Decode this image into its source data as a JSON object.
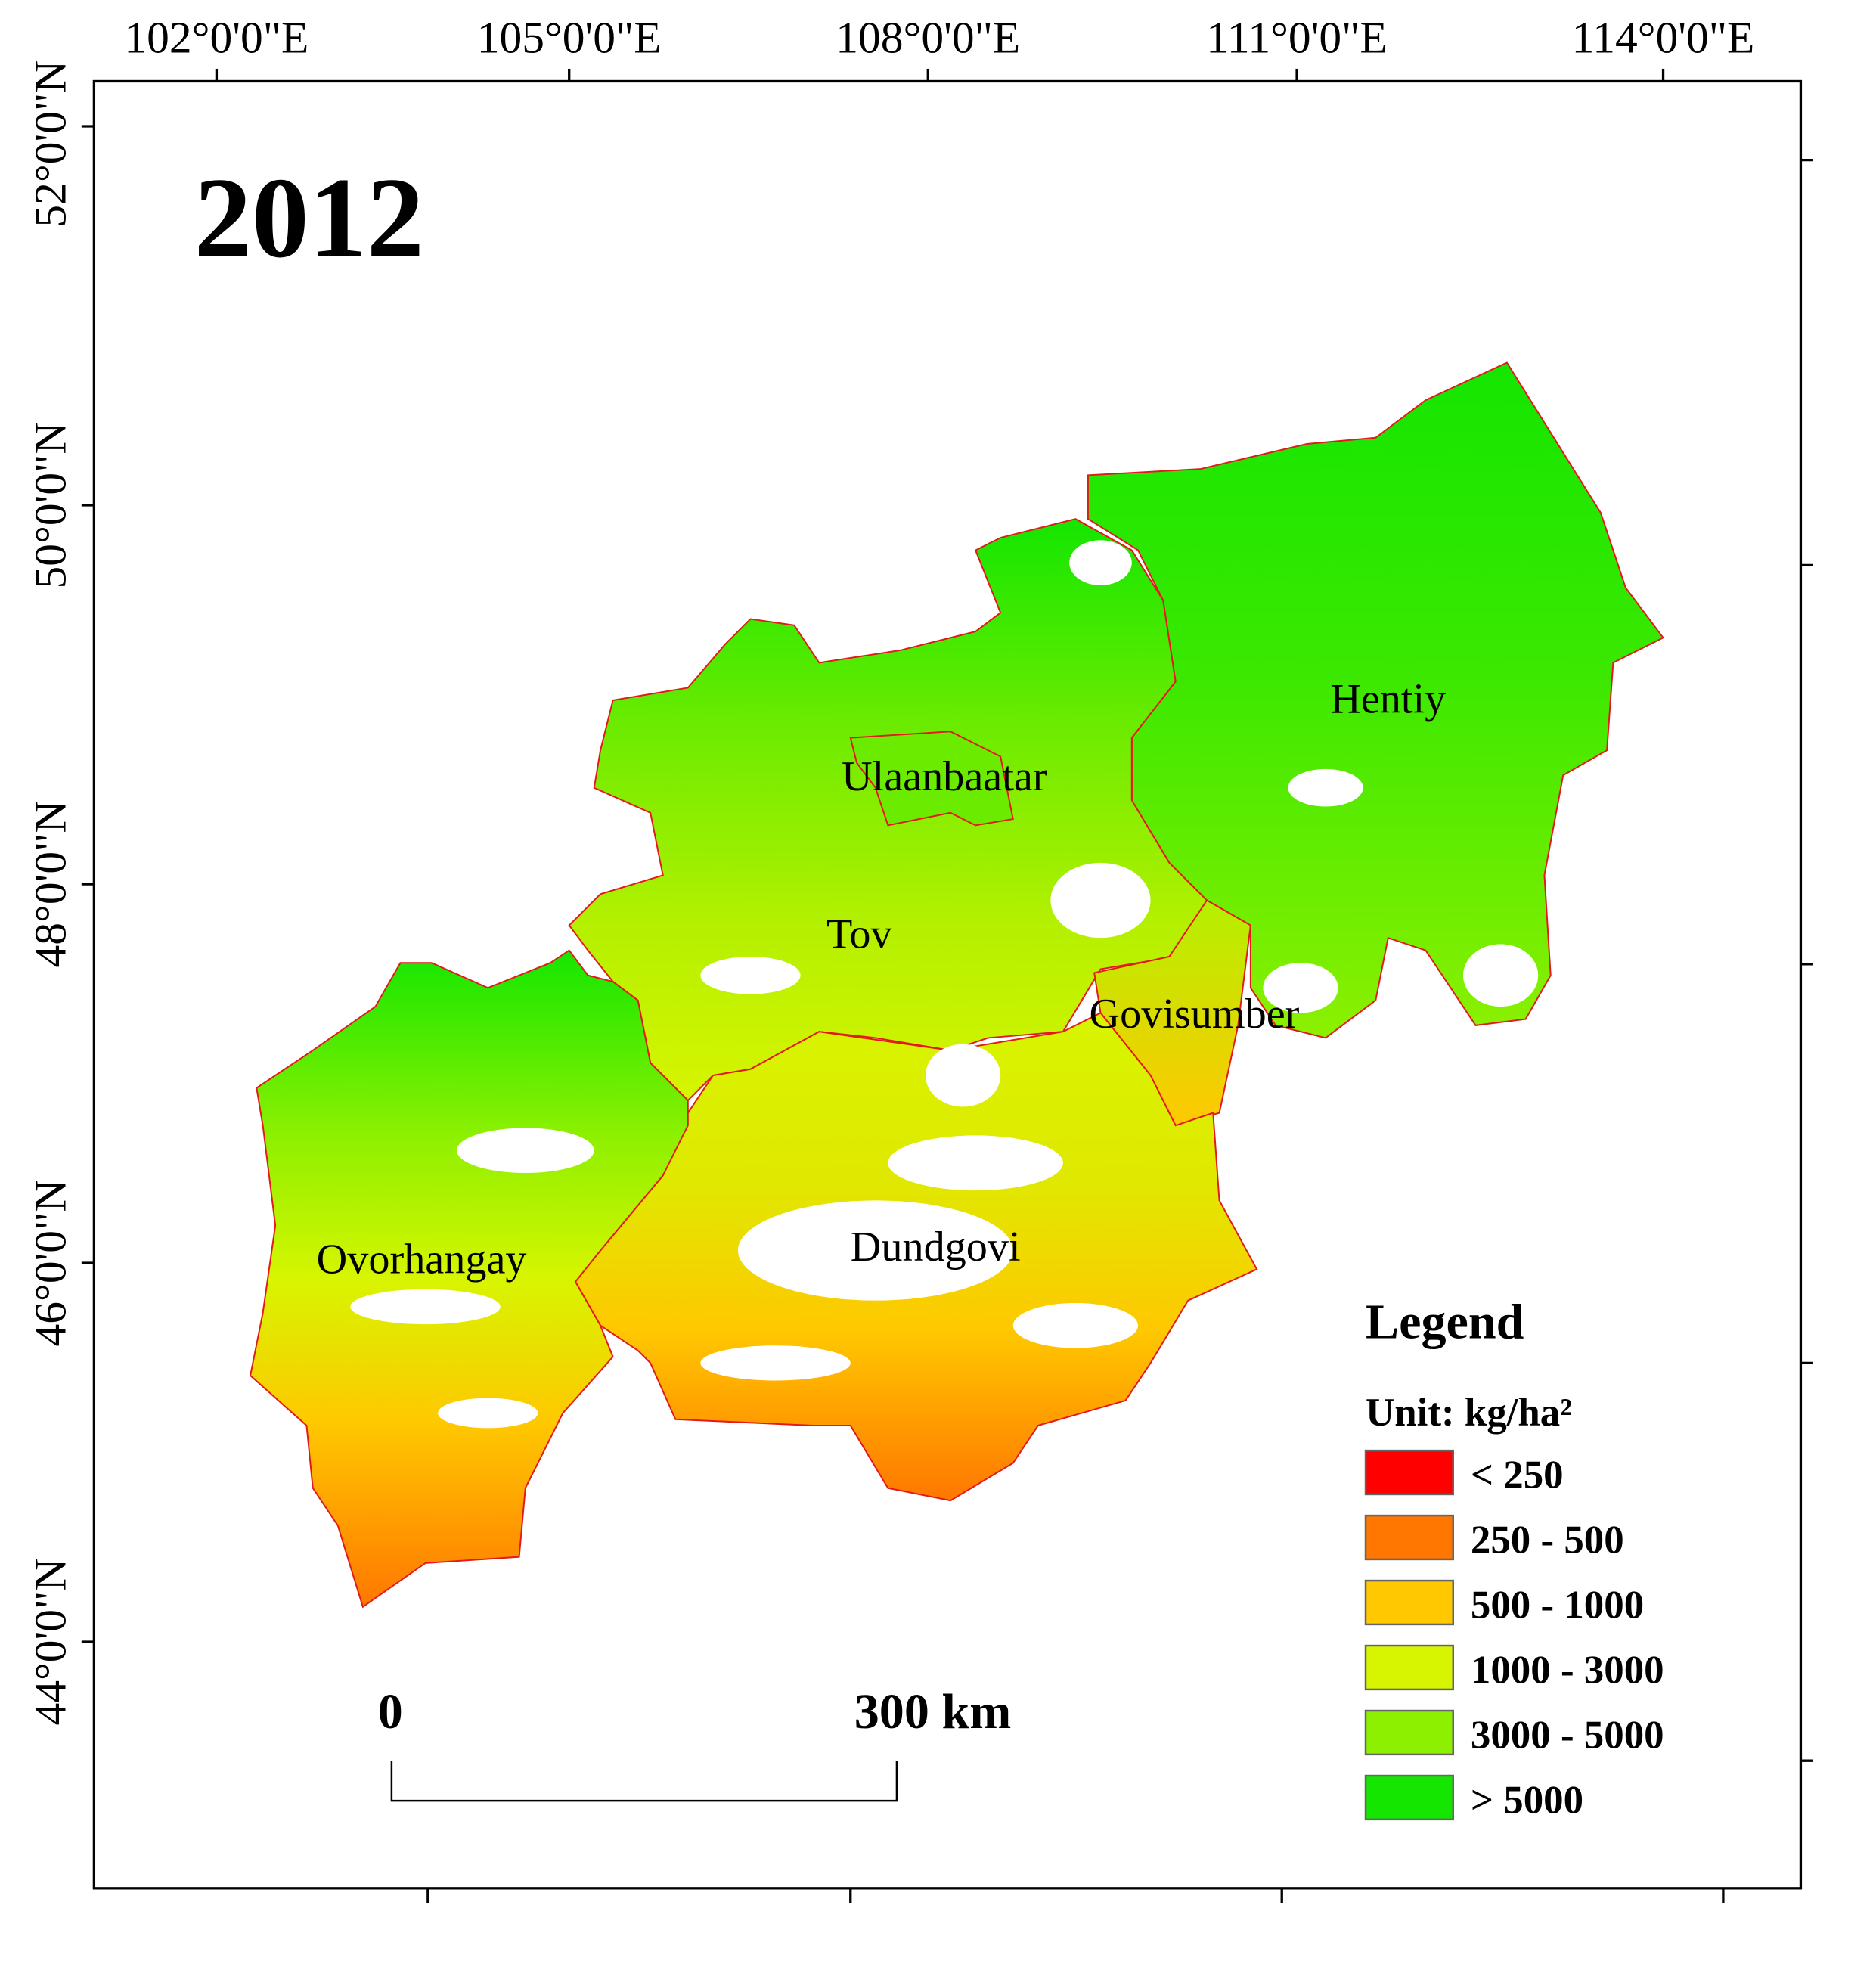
{
  "title": "2012",
  "longitude_labels": [
    "102°0'0\"E",
    "105°0'0\"E",
    "108°0'0\"E",
    "111°0'0\"E",
    "114°0'0\"E"
  ],
  "latitude_labels": [
    "52°0'0\"N",
    "50°0'0\"N",
    "48°0'0\"N",
    "46°0'0\"N",
    "44°0'0\"N"
  ],
  "regions": [
    "Hentiy",
    "Ulaanbaatar",
    "Tov",
    "Govisumber",
    "Dundgovi",
    "Ovorhangay"
  ],
  "legend": {
    "title": "Legend",
    "unit": "Unit: kg/ha²",
    "items": [
      {
        "label": "< 250",
        "color": "#ff0000"
      },
      {
        "label": "250 - 500",
        "color": "#ff7700"
      },
      {
        "label": "500 - 1000",
        "color": "#ffc800"
      },
      {
        "label": "1000 - 3000",
        "color": "#d7f500"
      },
      {
        "label": "3000 - 5000",
        "color": "#8cf000"
      },
      {
        "label": "> 5000",
        "color": "#14e600"
      }
    ]
  },
  "scale_bar": {
    "start": "0",
    "end": "300 km"
  }
}
